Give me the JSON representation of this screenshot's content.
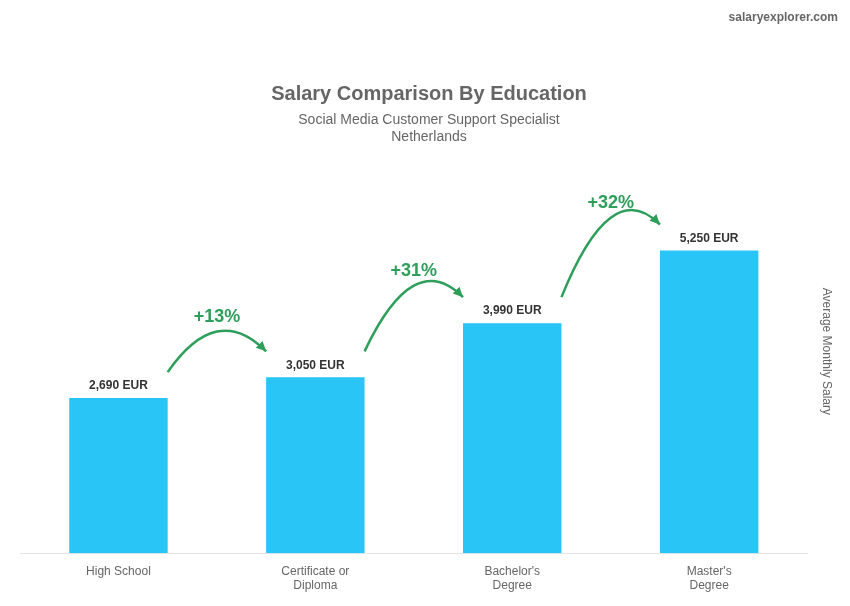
{
  "chart_data": {
    "type": "bar",
    "title": "Salary Comparison By Education",
    "subtitle": [
      "Social Media Customer Support Specialist",
      "Netherlands"
    ],
    "watermark": "salaryexplorer.com",
    "y_label": "Average Monthly Salary",
    "categories": [
      "High School",
      "Certificate or\nDiploma",
      "Bachelor's\nDegree",
      "Master's\nDegree"
    ],
    "values": [
      2690,
      3050,
      3990,
      5250
    ],
    "value_labels": [
      "2,690 EUR",
      "3,050 EUR",
      "3,990 EUR",
      "5,250 EUR"
    ],
    "data_labels": true,
    "annotations": [
      "+13%",
      "+31%",
      "+32%"
    ],
    "color": "#29c5f6",
    "ylim": [
      0,
      7000
    ],
    "tick_labels": "x",
    "grid": false
  }
}
